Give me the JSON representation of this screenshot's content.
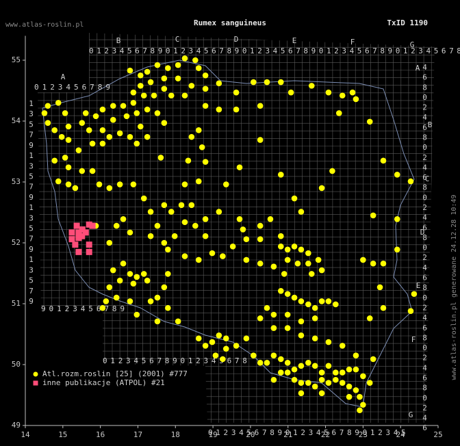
{
  "chart_data": {
    "type": "map",
    "title": "Rumex sanguineus",
    "subtitle": "TxID 1190",
    "site": "www.atlas-roslin.pl",
    "watermark": "www.atlas-roslin.pl generowane 24.12.28 10:49",
    "xlim": [
      14,
      25
    ],
    "ylim": [
      49,
      55.4
    ],
    "xticks": [
      14,
      15,
      16,
      17,
      18,
      19,
      20,
      21,
      22,
      23,
      24,
      25
    ],
    "yticks": [
      49,
      50,
      51,
      52,
      53,
      54,
      55
    ],
    "grid_labels": {
      "top_letters": [
        "A",
        "B",
        "C",
        "D",
        "E",
        "F",
        "G"
      ],
      "right_letters": [
        "A",
        "B",
        "C",
        "D",
        "E",
        "F",
        "G"
      ],
      "row_top": "0123456789012345678901234567890123456789012345678",
      "row_a": "0123456789",
      "row_sw": "90123456789",
      "row_s": "0123456789012345678",
      "row_bottom": "01234567890123456789012345",
      "col_left": "13579135791357913579",
      "col_right": "4680246802468024680246802468024680246"
    },
    "series": [
      {
        "name": "Atl.rozm.roslin [25] (2001) #777",
        "color": "#ffff00",
        "marker": "circle",
        "points": [
          [
            16.79,
            54.83
          ],
          [
            17.07,
            54.75
          ],
          [
            17.25,
            54.81
          ],
          [
            17.52,
            54.92
          ],
          [
            17.8,
            54.87
          ],
          [
            18.07,
            54.92
          ],
          [
            18.25,
            55.03
          ],
          [
            18.53,
            55.0
          ],
          [
            18.62,
            54.87
          ],
          [
            18.8,
            54.75
          ],
          [
            19.16,
            54.62
          ],
          [
            18.8,
            54.53
          ],
          [
            18.43,
            54.58
          ],
          [
            18.07,
            54.7
          ],
          [
            17.7,
            54.7
          ],
          [
            17.34,
            54.64
          ],
          [
            17.07,
            54.58
          ],
          [
            16.88,
            54.47
          ],
          [
            17.16,
            54.42
          ],
          [
            17.43,
            54.42
          ],
          [
            17.7,
            54.53
          ],
          [
            17.89,
            54.42
          ],
          [
            16.88,
            54.3
          ],
          [
            16.61,
            54.25
          ],
          [
            16.34,
            54.25
          ],
          [
            16.06,
            54.19
          ],
          [
            15.88,
            54.08
          ],
          [
            15.61,
            54.13
          ],
          [
            15.51,
            53.97
          ],
          [
            15.7,
            53.85
          ],
          [
            16.06,
            53.85
          ],
          [
            16.34,
            54.02
          ],
          [
            16.7,
            54.08
          ],
          [
            16.97,
            54.13
          ],
          [
            17.25,
            54.19
          ],
          [
            17.52,
            54.13
          ],
          [
            17.7,
            53.97
          ],
          [
            17.07,
            53.91
          ],
          [
            17.25,
            53.74
          ],
          [
            16.97,
            53.63
          ],
          [
            16.79,
            53.74
          ],
          [
            16.52,
            53.8
          ],
          [
            16.24,
            53.74
          ],
          [
            16.06,
            53.63
          ],
          [
            15.79,
            53.63
          ],
          [
            15.42,
            53.52
          ],
          [
            15.15,
            53.69
          ],
          [
            14.97,
            53.74
          ],
          [
            14.78,
            53.85
          ],
          [
            14.6,
            53.97
          ],
          [
            14.51,
            54.13
          ],
          [
            14.6,
            54.25
          ],
          [
            14.88,
            54.3
          ],
          [
            15.06,
            54.13
          ],
          [
            15.15,
            53.91
          ],
          [
            15.06,
            53.4
          ],
          [
            14.78,
            53.35
          ],
          [
            15.15,
            53.24
          ],
          [
            15.51,
            53.18
          ],
          [
            15.79,
            53.18
          ],
          [
            14.88,
            53.01
          ],
          [
            15.15,
            52.96
          ],
          [
            15.33,
            52.9
          ],
          [
            15.97,
            52.96
          ],
          [
            16.24,
            52.9
          ],
          [
            16.52,
            52.96
          ],
          [
            18.25,
            54.42
          ],
          [
            18.8,
            54.25
          ],
          [
            19.16,
            54.19
          ],
          [
            19.62,
            54.19
          ],
          [
            19.62,
            54.47
          ],
          [
            20.08,
            54.64
          ],
          [
            20.44,
            54.64
          ],
          [
            20.81,
            54.64
          ],
          [
            21.08,
            54.47
          ],
          [
            21.63,
            54.58
          ],
          [
            22.08,
            54.47
          ],
          [
            22.45,
            54.42
          ],
          [
            22.72,
            54.47
          ],
          [
            22.81,
            54.36
          ],
          [
            23.18,
            53.99
          ],
          [
            22.36,
            54.13
          ],
          [
            20.26,
            54.25
          ],
          [
            20.26,
            53.69
          ],
          [
            18.62,
            53.85
          ],
          [
            18.71,
            53.57
          ],
          [
            18.8,
            53.33
          ],
          [
            18.34,
            53.35
          ],
          [
            17.61,
            53.4
          ],
          [
            18.43,
            53.74
          ],
          [
            16.88,
            52.96
          ],
          [
            17.16,
            52.73
          ],
          [
            17.34,
            52.51
          ],
          [
            17.7,
            52.62
          ],
          [
            17.89,
            52.51
          ],
          [
            18.16,
            52.62
          ],
          [
            18.43,
            52.62
          ],
          [
            18.25,
            52.96
          ],
          [
            18.62,
            53.01
          ],
          [
            18.25,
            52.34
          ],
          [
            18.53,
            52.28
          ],
          [
            17.52,
            52.28
          ],
          [
            17.34,
            52.11
          ],
          [
            17.7,
            52.0
          ],
          [
            17.98,
            52.11
          ],
          [
            17.8,
            51.89
          ],
          [
            16.61,
            52.39
          ],
          [
            16.43,
            52.28
          ],
          [
            16.24,
            52.0
          ],
          [
            16.79,
            52.17
          ],
          [
            15.88,
            52.28
          ],
          [
            18.8,
            52.39
          ],
          [
            18.8,
            52.11
          ],
          [
            19.16,
            52.51
          ],
          [
            19.71,
            52.39
          ],
          [
            19.8,
            52.22
          ],
          [
            19.89,
            52.06
          ],
          [
            20.26,
            52.28
          ],
          [
            20.26,
            52.06
          ],
          [
            20.53,
            52.39
          ],
          [
            20.81,
            52.11
          ],
          [
            20.81,
            51.94
          ],
          [
            20.99,
            51.89
          ],
          [
            21.17,
            51.94
          ],
          [
            21.35,
            51.89
          ],
          [
            21.54,
            51.83
          ],
          [
            20.99,
            51.72
          ],
          [
            21.26,
            51.66
          ],
          [
            21.54,
            51.66
          ],
          [
            21.81,
            51.72
          ],
          [
            21.9,
            51.55
          ],
          [
            21.63,
            51.49
          ],
          [
            20.9,
            51.49
          ],
          [
            20.62,
            51.61
          ],
          [
            20.26,
            51.66
          ],
          [
            19.89,
            51.72
          ],
          [
            19.53,
            51.94
          ],
          [
            19.26,
            51.78
          ],
          [
            18.98,
            51.83
          ],
          [
            18.62,
            51.72
          ],
          [
            18.25,
            51.78
          ],
          [
            16.34,
            51.55
          ],
          [
            16.61,
            51.66
          ],
          [
            16.79,
            51.49
          ],
          [
            16.97,
            51.44
          ],
          [
            17.16,
            51.49
          ],
          [
            17.25,
            51.38
          ],
          [
            16.88,
            51.33
          ],
          [
            16.52,
            51.38
          ],
          [
            16.24,
            51.27
          ],
          [
            16.43,
            51.1
          ],
          [
            16.15,
            51.04
          ],
          [
            16.06,
            50.93
          ],
          [
            16.79,
            51.04
          ],
          [
            16.97,
            50.82
          ],
          [
            17.34,
            51.04
          ],
          [
            17.52,
            51.1
          ],
          [
            17.7,
            51.27
          ],
          [
            17.8,
            51.49
          ],
          [
            17.8,
            50.93
          ],
          [
            18.07,
            50.71
          ],
          [
            17.52,
            50.71
          ],
          [
            18.62,
            50.43
          ],
          [
            18.8,
            50.31
          ],
          [
            18.98,
            50.37
          ],
          [
            19.16,
            50.48
          ],
          [
            19.35,
            50.43
          ],
          [
            19.35,
            50.26
          ],
          [
            19.07,
            50.15
          ],
          [
            19.26,
            50.09
          ],
          [
            19.62,
            50.31
          ],
          [
            19.89,
            50.43
          ],
          [
            20.08,
            50.15
          ],
          [
            20.26,
            50.03
          ],
          [
            20.44,
            50.03
          ],
          [
            20.62,
            50.15
          ],
          [
            20.81,
            50.09
          ],
          [
            20.99,
            50.03
          ],
          [
            21.17,
            49.92
          ],
          [
            21.35,
            49.98
          ],
          [
            21.54,
            50.03
          ],
          [
            21.72,
            49.98
          ],
          [
            21.9,
            49.87
          ],
          [
            22.08,
            49.98
          ],
          [
            22.27,
            49.87
          ],
          [
            22.45,
            49.87
          ],
          [
            22.63,
            49.92
          ],
          [
            22.81,
            49.92
          ],
          [
            23.0,
            49.81
          ],
          [
            23.18,
            49.7
          ],
          [
            23.27,
            50.09
          ],
          [
            20.99,
            49.87
          ],
          [
            21.17,
            49.75
          ],
          [
            21.35,
            49.7
          ],
          [
            21.54,
            49.7
          ],
          [
            21.72,
            49.64
          ],
          [
            21.9,
            49.75
          ],
          [
            22.08,
            49.7
          ],
          [
            22.27,
            49.75
          ],
          [
            22.45,
            49.7
          ],
          [
            22.63,
            49.64
          ],
          [
            22.81,
            49.58
          ],
          [
            22.91,
            49.47
          ],
          [
            20.81,
            49.87
          ],
          [
            20.62,
            49.75
          ],
          [
            21.35,
            49.53
          ],
          [
            21.9,
            49.53
          ],
          [
            22.63,
            49.47
          ],
          [
            22.91,
            49.25
          ],
          [
            23.0,
            49.34
          ],
          [
            20.81,
            51.21
          ],
          [
            20.99,
            51.16
          ],
          [
            21.17,
            51.1
          ],
          [
            21.35,
            51.04
          ],
          [
            21.54,
            50.99
          ],
          [
            21.72,
            50.93
          ],
          [
            21.9,
            51.04
          ],
          [
            22.08,
            51.04
          ],
          [
            22.27,
            50.99
          ],
          [
            21.72,
            50.76
          ],
          [
            21.35,
            50.71
          ],
          [
            20.99,
            50.82
          ],
          [
            20.62,
            50.82
          ],
          [
            20.44,
            50.93
          ],
          [
            20.26,
            50.76
          ],
          [
            20.62,
            50.6
          ],
          [
            20.99,
            50.6
          ],
          [
            21.35,
            50.48
          ],
          [
            21.72,
            50.43
          ],
          [
            22.08,
            50.37
          ],
          [
            22.45,
            50.31
          ],
          [
            22.81,
            50.15
          ],
          [
            23.18,
            50.76
          ],
          [
            23.54,
            50.93
          ],
          [
            23.45,
            51.27
          ],
          [
            23.54,
            51.66
          ],
          [
            23.91,
            51.89
          ],
          [
            23.27,
            51.66
          ],
          [
            23.0,
            51.72
          ],
          [
            23.27,
            52.45
          ],
          [
            23.91,
            52.39
          ],
          [
            24.27,
            50.88
          ],
          [
            24.36,
            51.16
          ],
          [
            23.91,
            53.12
          ],
          [
            24.27,
            53.01
          ],
          [
            23.54,
            53.35
          ],
          [
            22.18,
            53.18
          ],
          [
            21.9,
            52.9
          ],
          [
            21.17,
            52.73
          ],
          [
            21.35,
            52.51
          ],
          [
            20.81,
            53.12
          ],
          [
            19.35,
            52.96
          ],
          [
            19.71,
            53.24
          ]
        ]
      },
      {
        "name": "inne publikacje (ATPOL) #21",
        "color": "#ff4d79",
        "marker": "square",
        "points": [
          [
            15.24,
            52.17
          ],
          [
            15.42,
            52.17
          ],
          [
            15.61,
            52.17
          ],
          [
            15.7,
            52.3
          ],
          [
            15.79,
            52.28
          ],
          [
            15.24,
            52.06
          ],
          [
            15.42,
            52.08
          ],
          [
            15.51,
            52.11
          ],
          [
            15.33,
            51.97
          ],
          [
            15.7,
            51.97
          ],
          [
            15.42,
            51.85
          ],
          [
            15.7,
            51.85
          ],
          [
            15.37,
            52.28
          ],
          [
            15.52,
            52.22
          ]
        ]
      }
    ]
  }
}
